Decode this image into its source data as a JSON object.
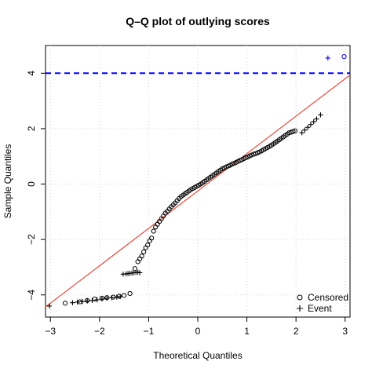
{
  "chart_data": {
    "type": "scatter",
    "title": "Q–Q plot of outlying scores",
    "xlabel": "Theoretical Quantiles",
    "ylabel": "Sample Quantiles",
    "xlim": [
      -3.1,
      3.1
    ],
    "ylim": [
      -4.8,
      5.0
    ],
    "xticks": [
      -3,
      -2,
      -1,
      0,
      1,
      2,
      3
    ],
    "xtick_labels": [
      "−3",
      "−2",
      "−1",
      "0",
      "1",
      "2",
      "3"
    ],
    "yticks": [
      -4,
      -2,
      0,
      2,
      4
    ],
    "ytick_labels": [
      "−4",
      "−2",
      "0",
      "2",
      "4"
    ],
    "grid": true,
    "legend_position": "bottom-right",
    "legend": [
      "Censored",
      "Event"
    ],
    "reference_line": {
      "slope": 1.35,
      "intercept": -0.25,
      "color": "#e74c3c"
    },
    "threshold_line": {
      "y": 4.0,
      "color": "#0000ff",
      "style": "dashed"
    },
    "series": [
      {
        "name": "Censored",
        "marker": "circle",
        "color": "#000000",
        "x": [
          -2.7,
          -2.4,
          -2.25,
          -2.1,
          -1.95,
          -1.85,
          -1.72,
          -1.6,
          -1.5,
          -1.38,
          -1.28,
          -1.22,
          -1.18,
          -1.14,
          -1.1,
          -1.06,
          -1.02,
          -0.98,
          -0.94,
          -0.9,
          -0.86,
          -0.82,
          -0.78,
          -0.74,
          -0.7,
          -0.66,
          -0.62,
          -0.58,
          -0.54,
          -0.5,
          -0.46,
          -0.42,
          -0.38,
          -0.34,
          -0.3,
          -0.26,
          -0.22,
          -0.18,
          -0.14,
          -0.1,
          -0.06,
          -0.02,
          0.02,
          0.06,
          0.1,
          0.14,
          0.18,
          0.22,
          0.26,
          0.3,
          0.34,
          0.38,
          0.42,
          0.46,
          0.5,
          0.54,
          0.58,
          0.62,
          0.66,
          0.7,
          0.74,
          0.78,
          0.82,
          0.86,
          0.9,
          0.94,
          0.98,
          1.02,
          1.06,
          1.1,
          1.14,
          1.18,
          1.22,
          1.26,
          1.3,
          1.34,
          1.38,
          1.42,
          1.46,
          1.5,
          1.54,
          1.58,
          1.62,
          1.66,
          1.7,
          1.74,
          1.78,
          1.82,
          1.86,
          1.9,
          1.94,
          1.98
        ],
        "y": [
          -4.3,
          -4.25,
          -4.2,
          -4.15,
          -4.12,
          -4.1,
          -4.08,
          -4.05,
          -4.02,
          -3.95,
          -3.05,
          -2.8,
          -2.7,
          -2.6,
          -2.45,
          -2.3,
          -2.2,
          -2.05,
          -1.95,
          -1.7,
          -1.55,
          -1.45,
          -1.35,
          -1.25,
          -1.15,
          -1.05,
          -0.98,
          -0.9,
          -0.82,
          -0.75,
          -0.68,
          -0.6,
          -0.52,
          -0.45,
          -0.4,
          -0.35,
          -0.3,
          -0.25,
          -0.2,
          -0.16,
          -0.12,
          -0.08,
          -0.04,
          0.0,
          0.05,
          0.1,
          0.15,
          0.2,
          0.25,
          0.3,
          0.35,
          0.4,
          0.45,
          0.5,
          0.55,
          0.58,
          0.62,
          0.65,
          0.68,
          0.72,
          0.75,
          0.78,
          0.82,
          0.85,
          0.88,
          0.92,
          0.95,
          0.98,
          1.02,
          1.05,
          1.08,
          1.1,
          1.13,
          1.16,
          1.2,
          1.24,
          1.28,
          1.32,
          1.36,
          1.4,
          1.45,
          1.5,
          1.55,
          1.6,
          1.65,
          1.7,
          1.75,
          1.8,
          1.85,
          1.87,
          1.9,
          1.92
        ]
      },
      {
        "name": "Event",
        "marker": "plus",
        "color": "#000000",
        "x": [
          -3.02,
          -2.55,
          -2.45,
          -2.35,
          -2.25,
          -2.15,
          -2.05,
          -1.95,
          -1.85,
          -1.75,
          -1.65,
          -1.58,
          -1.52,
          -1.46,
          -1.42,
          -1.38,
          -1.34,
          -1.3,
          -1.26,
          -1.22,
          -1.18,
          2.12,
          2.18,
          2.24,
          2.3,
          2.36,
          2.42,
          2.5
        ],
        "y": [
          -4.4,
          -4.28,
          -4.26,
          -4.24,
          -4.22,
          -4.2,
          -4.18,
          -4.15,
          -4.12,
          -4.1,
          -4.08,
          -4.06,
          -3.25,
          -3.24,
          -3.23,
          -3.22,
          -3.21,
          -3.2,
          -3.19,
          -3.18,
          -3.2,
          1.85,
          1.95,
          2.05,
          2.15,
          2.25,
          2.35,
          2.5
        ]
      },
      {
        "name": "",
        "marker": "plus",
        "color": "#0000ff",
        "x": [
          2.65
        ],
        "y": [
          4.55
        ]
      },
      {
        "name": "",
        "marker": "circle",
        "color": "#0000ff",
        "x": [
          2.98
        ],
        "y": [
          4.6
        ]
      }
    ]
  }
}
